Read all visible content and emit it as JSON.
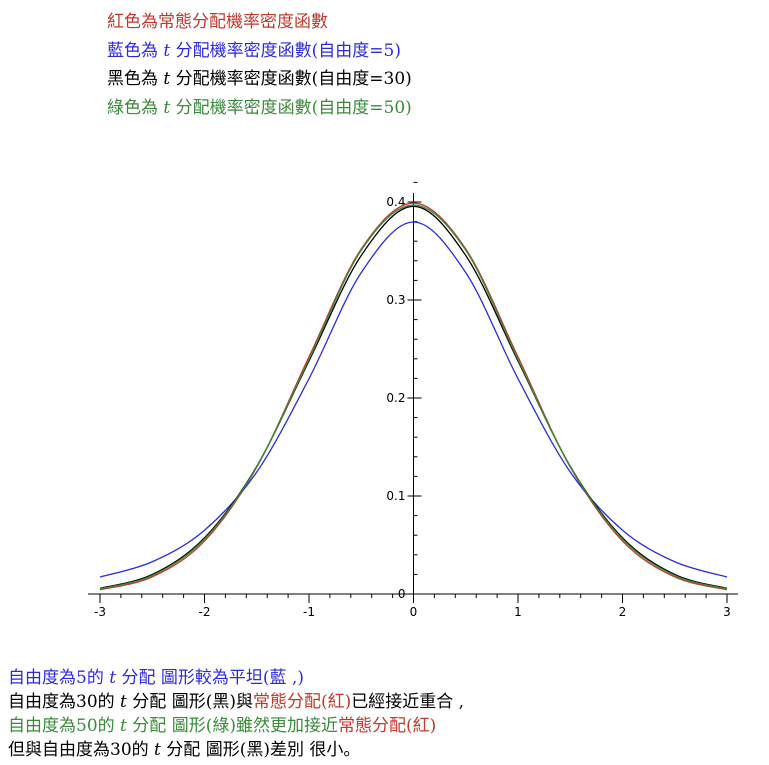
{
  "colors": {
    "red": "#c0392b",
    "blue": "#2b2bd9",
    "black": "#000000",
    "green": "#3a8a3a"
  },
  "legend": {
    "red": {
      "text": "紅色為常態分配機率密度函數"
    },
    "blue": {
      "pre": "藍色為 ",
      "t": "t",
      "post": " 分配機率密度函數(自由度=5)"
    },
    "black": {
      "pre": "黑色為 ",
      "t": "t",
      "post": " 分配機率密度函數(自由度=30)"
    },
    "green": {
      "pre": "綠色為 ",
      "t": "t",
      "post": " 分配機率密度函數(自由度=50)"
    }
  },
  "notes": {
    "line1": {
      "pre": "自由度為5的 ",
      "t": "t",
      "post": " 分配 圖形較為平坦(藍 ,)"
    },
    "line2": {
      "a": "自由度為30的 ",
      "t": "t",
      "b": " 分配 圖形(黑)與",
      "c": "常態分配(紅)",
      "d": "已經接近重合 ,"
    },
    "line3": {
      "a": "自由度為50的 ",
      "t": "t",
      "b": " 分配 圖形(綠)雖然更加接近",
      "c": "常態分配(紅)"
    },
    "line4": {
      "pre": "但與自由度為30的 ",
      "t": "t",
      "post": " 分配 圖形(黑)差別 很小。"
    }
  },
  "chart_data": {
    "type": "line",
    "xlim": [
      -3,
      3
    ],
    "ylim": [
      0,
      0.4
    ],
    "x_ticks": [
      -3,
      -2,
      -1,
      0,
      1,
      2,
      3
    ],
    "y_ticks": [
      0,
      0.1,
      0.2,
      0.3,
      0.4
    ],
    "x_tick_labels": [
      "-3",
      "-2",
      "-1",
      "0",
      "1",
      "2",
      "3"
    ],
    "y_tick_labels": [
      "0",
      "0.1",
      "0.2",
      "0.3",
      "0.4"
    ],
    "grid": false,
    "series": [
      {
        "color_key": "red",
        "df": null,
        "x": [
          -3,
          -2.5,
          -2,
          -1.5,
          -1,
          -0.5,
          0,
          0.5,
          1,
          1.5,
          2,
          2.5,
          3
        ],
        "y": [
          0.0044,
          0.0175,
          0.054,
          0.1295,
          0.242,
          0.3521,
          0.3989,
          0.3521,
          0.242,
          0.1295,
          0.054,
          0.0175,
          0.0044
        ]
      },
      {
        "color_key": "blue",
        "df": 5,
        "x": [
          -3,
          -2.5,
          -2,
          -1.5,
          -1,
          -0.5,
          0,
          0.5,
          1,
          1.5,
          2,
          2.5,
          3
        ],
        "y": [
          0.0173,
          0.0329,
          0.0651,
          0.1245,
          0.2197,
          0.3279,
          0.3796,
          0.3279,
          0.2197,
          0.1245,
          0.0651,
          0.0329,
          0.0173
        ]
      },
      {
        "color_key": "black",
        "df": 30,
        "x": [
          -3,
          -2.5,
          -2,
          -1.5,
          -1,
          -0.5,
          0,
          0.5,
          1,
          1.5,
          2,
          2.5,
          3
        ],
        "y": [
          0.0058,
          0.0199,
          0.0573,
          0.1303,
          0.2378,
          0.3454,
          0.3956,
          0.3454,
          0.2378,
          0.1303,
          0.0573,
          0.0199,
          0.0058
        ]
      },
      {
        "color_key": "green",
        "df": 50,
        "x": [
          -3,
          -2.5,
          -2,
          -1.5,
          -1,
          -0.5,
          0,
          0.5,
          1,
          1.5,
          2,
          2.5,
          3
        ],
        "y": [
          0.0052,
          0.0189,
          0.056,
          0.1299,
          0.2394,
          0.3508,
          0.3969,
          0.3508,
          0.2394,
          0.1299,
          0.056,
          0.0189,
          0.0052
        ]
      }
    ]
  }
}
